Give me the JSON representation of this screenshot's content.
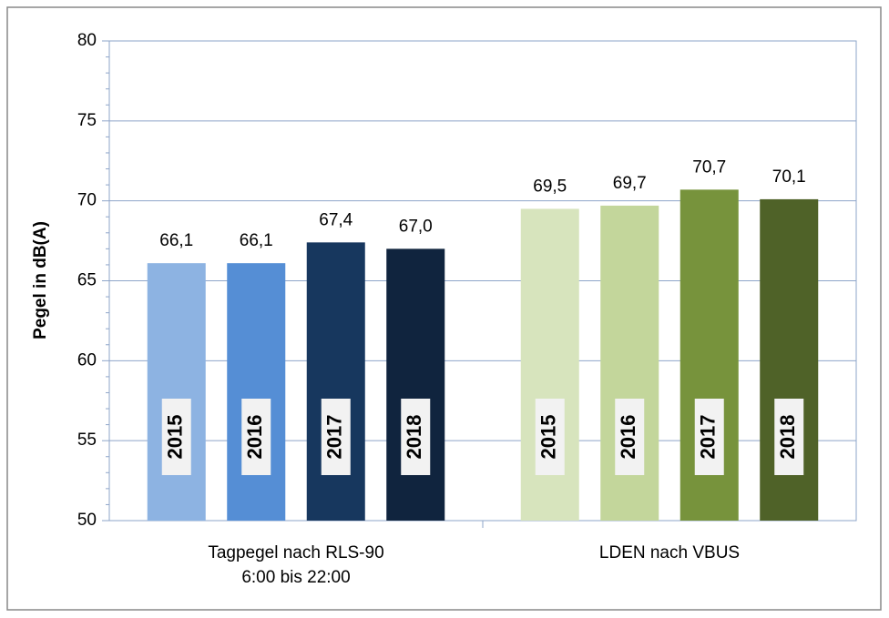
{
  "chart_data": {
    "type": "bar",
    "ylabel": "Pegel in dB(A)",
    "categories": [
      "Tagpegel nach RLS-90\n6:00 bis 22:00",
      "LDEN nach VBUS"
    ],
    "series": [
      {
        "name": "2015",
        "colors": [
          "#8db3e2",
          "#d7e4bd"
        ],
        "values": [
          66.1,
          69.5
        ],
        "value_labels": [
          "66,1",
          "69,5"
        ]
      },
      {
        "name": "2016",
        "colors": [
          "#558ed5",
          "#c3d69b"
        ],
        "values": [
          66.1,
          69.7
        ],
        "value_labels": [
          "66,1",
          "69,7"
        ]
      },
      {
        "name": "2017",
        "colors": [
          "#17375e",
          "#77933c"
        ],
        "values": [
          67.4,
          70.7
        ],
        "value_labels": [
          "67,4",
          "70,7"
        ]
      },
      {
        "name": "2018",
        "colors": [
          "#10243e",
          "#4f6228"
        ],
        "values": [
          67.0,
          70.1
        ],
        "value_labels": [
          "67,0",
          "70,1"
        ]
      }
    ],
    "ylim": [
      50,
      80
    ],
    "yticks": [
      50,
      55,
      60,
      65,
      70,
      75,
      80
    ],
    "yminorticks": [
      51,
      52,
      53,
      54,
      56,
      57,
      58,
      59,
      61,
      62,
      63,
      64,
      66,
      67,
      68,
      69,
      71,
      72,
      73,
      74,
      76,
      77,
      78,
      79
    ],
    "grid": true
  }
}
